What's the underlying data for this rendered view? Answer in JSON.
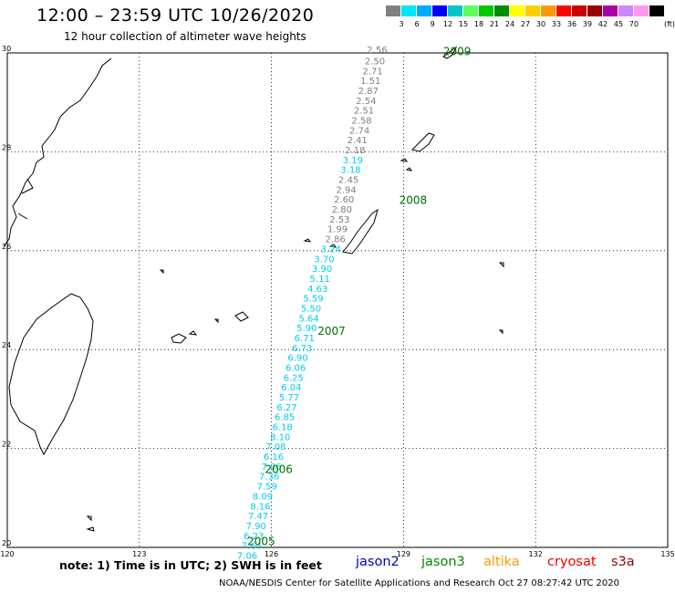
{
  "header": {
    "title": "12:00 – 23:59 UTC 10/26/2020",
    "subtitle": "12 hour collection of altimeter wave heights"
  },
  "colorbar": {
    "unit": "(ft)",
    "bins": [
      {
        "label": "",
        "color": "#808080"
      },
      {
        "label": "3",
        "color": "#00e5ff"
      },
      {
        "label": "6",
        "color": "#00aaff"
      },
      {
        "label": "9",
        "color": "#0000ff"
      },
      {
        "label": "12",
        "color": "#00c8c8"
      },
      {
        "label": "15",
        "color": "#5cff5c"
      },
      {
        "label": "18",
        "color": "#00c800"
      },
      {
        "label": "21",
        "color": "#008c00"
      },
      {
        "label": "24",
        "color": "#ffff00"
      },
      {
        "label": "27",
        "color": "#ffcc00"
      },
      {
        "label": "30",
        "color": "#ff9900"
      },
      {
        "label": "33",
        "color": "#ff0000"
      },
      {
        "label": "36",
        "color": "#cc0000"
      },
      {
        "label": "39",
        "color": "#990000"
      },
      {
        "label": "42",
        "color": "#aa00aa"
      },
      {
        "label": "45",
        "color": "#cc88ff"
      },
      {
        "label": "70",
        "color": "#ff99ee"
      },
      {
        "label": "",
        "color": "#000000"
      }
    ]
  },
  "map": {
    "lon_range": [
      120,
      135
    ],
    "lat_range": [
      20,
      30
    ],
    "lon_ticks": [
      "120",
      "123",
      "126",
      "129",
      "132",
      "135"
    ],
    "lat_ticks": [
      "30",
      "28",
      "26",
      "24",
      "22",
      "20"
    ],
    "colors": {
      "grey_track": "#808080",
      "cyan_track": "#00ccee",
      "pass_label": "#007000"
    },
    "pass_labels": [
      {
        "text": "2009",
        "lon": 129.9,
        "lat": 29.95
      },
      {
        "text": "2008",
        "lon": 128.9,
        "lat": 26.95
      },
      {
        "text": "2007",
        "lon": 127.05,
        "lat": 24.3
      },
      {
        "text": "2006",
        "lon": 125.85,
        "lat": 21.5
      },
      {
        "text": "2005",
        "lon": 125.45,
        "lat": 20.05
      }
    ],
    "track_points": [
      {
        "value": "2.56",
        "lon": 128.4,
        "lat": 30.0,
        "color": "grey"
      },
      {
        "value": "2.50",
        "lon": 128.35,
        "lat": 29.77,
        "color": "grey"
      },
      {
        "value": "2.71",
        "lon": 128.3,
        "lat": 29.57,
        "color": "grey"
      },
      {
        "value": "1.51",
        "lon": 128.25,
        "lat": 29.37,
        "color": "grey"
      },
      {
        "value": "2.87",
        "lon": 128.2,
        "lat": 29.17,
        "color": "grey"
      },
      {
        "value": "2.54",
        "lon": 128.15,
        "lat": 28.97,
        "color": "grey"
      },
      {
        "value": "2.51",
        "lon": 128.1,
        "lat": 28.77,
        "color": "grey"
      },
      {
        "value": "2.58",
        "lon": 128.05,
        "lat": 28.57,
        "color": "grey"
      },
      {
        "value": "2.74",
        "lon": 128.0,
        "lat": 28.37,
        "color": "grey"
      },
      {
        "value": "2.41",
        "lon": 127.95,
        "lat": 28.17,
        "color": "grey"
      },
      {
        "value": "2.18",
        "lon": 127.9,
        "lat": 27.97,
        "color": "grey"
      },
      {
        "value": "3.19",
        "lon": 127.85,
        "lat": 27.77,
        "color": "cyan"
      },
      {
        "value": "3.18",
        "lon": 127.8,
        "lat": 27.57,
        "color": "cyan"
      },
      {
        "value": "2.45",
        "lon": 127.75,
        "lat": 27.37,
        "color": "grey"
      },
      {
        "value": "2.94",
        "lon": 127.7,
        "lat": 27.17,
        "color": "grey"
      },
      {
        "value": "2.60",
        "lon": 127.65,
        "lat": 26.97,
        "color": "grey"
      },
      {
        "value": "2.80",
        "lon": 127.6,
        "lat": 26.77,
        "color": "grey"
      },
      {
        "value": "2.53",
        "lon": 127.55,
        "lat": 26.57,
        "color": "grey"
      },
      {
        "value": "1.99",
        "lon": 127.5,
        "lat": 26.37,
        "color": "grey"
      },
      {
        "value": "2.86",
        "lon": 127.45,
        "lat": 26.17,
        "color": "grey"
      },
      {
        "value": "3.24",
        "lon": 127.35,
        "lat": 25.97,
        "color": "cyan"
      },
      {
        "value": "3.70",
        "lon": 127.2,
        "lat": 25.77,
        "color": "cyan"
      },
      {
        "value": "3.90",
        "lon": 127.15,
        "lat": 25.57,
        "color": "cyan"
      },
      {
        "value": "5.11",
        "lon": 127.1,
        "lat": 25.37,
        "color": "cyan"
      },
      {
        "value": "4.63",
        "lon": 127.05,
        "lat": 25.17,
        "color": "cyan"
      },
      {
        "value": "5.59",
        "lon": 126.95,
        "lat": 24.97,
        "color": "cyan"
      },
      {
        "value": "5.50",
        "lon": 126.9,
        "lat": 24.77,
        "color": "cyan"
      },
      {
        "value": "5.64",
        "lon": 126.85,
        "lat": 24.57,
        "color": "cyan"
      },
      {
        "value": "5.90",
        "lon": 126.8,
        "lat": 24.37,
        "color": "cyan"
      },
      {
        "value": "6.71",
        "lon": 126.75,
        "lat": 24.17,
        "color": "cyan"
      },
      {
        "value": "6.73",
        "lon": 126.7,
        "lat": 23.97,
        "color": "cyan"
      },
      {
        "value": "6.90",
        "lon": 126.6,
        "lat": 23.77,
        "color": "cyan"
      },
      {
        "value": "6.06",
        "lon": 126.55,
        "lat": 23.57,
        "color": "cyan"
      },
      {
        "value": "6.25",
        "lon": 126.5,
        "lat": 23.37,
        "color": "cyan"
      },
      {
        "value": "6.04",
        "lon": 126.45,
        "lat": 23.17,
        "color": "cyan"
      },
      {
        "value": "5.77",
        "lon": 126.4,
        "lat": 22.97,
        "color": "cyan"
      },
      {
        "value": "6.27",
        "lon": 126.35,
        "lat": 22.77,
        "color": "cyan"
      },
      {
        "value": "6.85",
        "lon": 126.3,
        "lat": 22.57,
        "color": "cyan"
      },
      {
        "value": "6.18",
        "lon": 126.25,
        "lat": 22.37,
        "color": "cyan"
      },
      {
        "value": "8.10",
        "lon": 126.2,
        "lat": 22.17,
        "color": "cyan"
      },
      {
        "value": "7.08",
        "lon": 126.1,
        "lat": 21.97,
        "color": "cyan"
      },
      {
        "value": "6.16",
        "lon": 126.05,
        "lat": 21.77,
        "color": "cyan"
      },
      {
        "value": "7.06",
        "lon": 126.0,
        "lat": 21.57,
        "color": "cyan"
      },
      {
        "value": "7.36",
        "lon": 125.95,
        "lat": 21.37,
        "color": "cyan"
      },
      {
        "value": "7.59",
        "lon": 125.9,
        "lat": 21.17,
        "color": "cyan"
      },
      {
        "value": "8.09",
        "lon": 125.8,
        "lat": 20.97,
        "color": "cyan"
      },
      {
        "value": "8.16",
        "lon": 125.75,
        "lat": 20.77,
        "color": "cyan"
      },
      {
        "value": "7.47",
        "lon": 125.7,
        "lat": 20.57,
        "color": "cyan"
      },
      {
        "value": "7.90",
        "lon": 125.65,
        "lat": 20.37,
        "color": "cyan"
      },
      {
        "value": "6.23",
        "lon": 125.6,
        "lat": 20.17,
        "color": "cyan"
      },
      {
        "value": "7.64",
        "lon": 125.55,
        "lat": 19.97,
        "color": "cyan"
      },
      {
        "value": "7.06",
        "lon": 125.45,
        "lat": 19.77,
        "color": "cyan"
      }
    ]
  },
  "footer": {
    "note": "note: 1) Time is in UTC; 2) SWH is in feet",
    "satellites": [
      {
        "name": "jason2",
        "color": "#0000cc"
      },
      {
        "name": "jason3",
        "color": "#008800"
      },
      {
        "name": "altika",
        "color": "#ff9900"
      },
      {
        "name": "cryosat",
        "color": "#ee0000"
      },
      {
        "name": "s3a",
        "color": "#990000"
      }
    ],
    "credit": "NOAA/NESDIS Center for Satellite Applications and Research    Oct 27 08:27:42 UTC 2020"
  }
}
